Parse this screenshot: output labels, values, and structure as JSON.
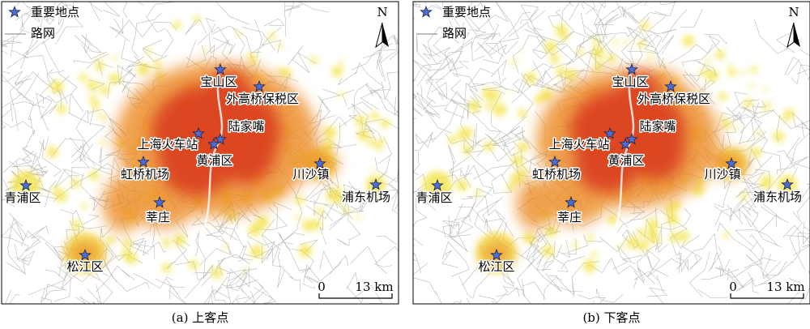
{
  "panels": [
    {
      "legend": {
        "point": "重要地点",
        "road": "路网"
      },
      "north": "N",
      "scale": {
        "start": "0",
        "end": "13 km"
      },
      "places": [
        "宝山区",
        "外高桥保税区",
        "陆家嘴",
        "上海火车站",
        "黄浦区",
        "虹桥机场",
        "川沙镇",
        "青浦区",
        "浦东机场",
        "莘庄",
        "松江区"
      ],
      "caption": "(a) 上客点"
    },
    {
      "legend": {
        "point": "重要地点",
        "road": "路网"
      },
      "north": "N",
      "scale": {
        "start": "0",
        "end": "13 km"
      },
      "places": [
        "宝山区",
        "外高桥保税区",
        "陆家嘴",
        "上海火车站",
        "黄浦区",
        "虹桥机场",
        "川沙镇",
        "青浦区",
        "浦东机场",
        "莘庄",
        "松江区"
      ],
      "caption": "(b) 下客点"
    }
  ]
}
